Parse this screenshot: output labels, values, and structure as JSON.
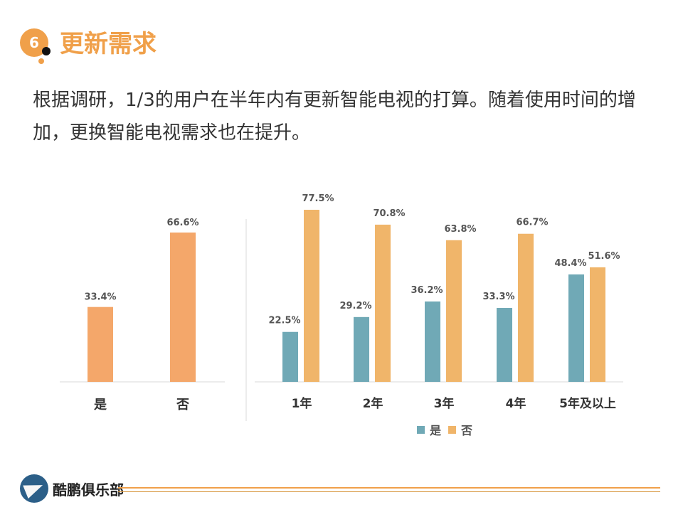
{
  "header": {
    "section_number": "6",
    "title": "更新需求"
  },
  "description": "根据调研，1/3的用户在半年内有更新智能电视的打算。随着使用时间的增加，更换智能电视需求也在提升。",
  "footer": {
    "logo_text": "酷鹏俱乐部"
  },
  "colors": {
    "orange": "#f4a76a",
    "teal": "#70a9b6",
    "tan": "#f0b56a",
    "accent": "#f0a04a"
  },
  "chart_data": [
    {
      "type": "bar",
      "title": "",
      "categories": [
        "是",
        "否"
      ],
      "values": [
        33.4,
        66.6
      ],
      "value_labels": [
        "33.4%",
        "66.6%"
      ],
      "ylim": [
        0,
        80
      ]
    },
    {
      "type": "bar",
      "title": "",
      "categories": [
        "1年",
        "2年",
        "3年",
        "4年",
        "5年及以上"
      ],
      "series": [
        {
          "name": "是",
          "values": [
            22.5,
            29.2,
            36.2,
            33.3,
            48.4
          ],
          "labels": [
            "22.5%",
            "29.2%",
            "36.2%",
            "33.3%",
            "48.4%"
          ]
        },
        {
          "name": "否",
          "values": [
            77.5,
            70.8,
            63.8,
            66.7,
            51.6
          ],
          "labels": [
            "77.5%",
            "70.8%",
            "63.8%",
            "66.7%",
            "51.6%"
          ]
        }
      ],
      "legend": [
        "是",
        "否"
      ],
      "ylim": [
        0,
        80
      ]
    }
  ]
}
